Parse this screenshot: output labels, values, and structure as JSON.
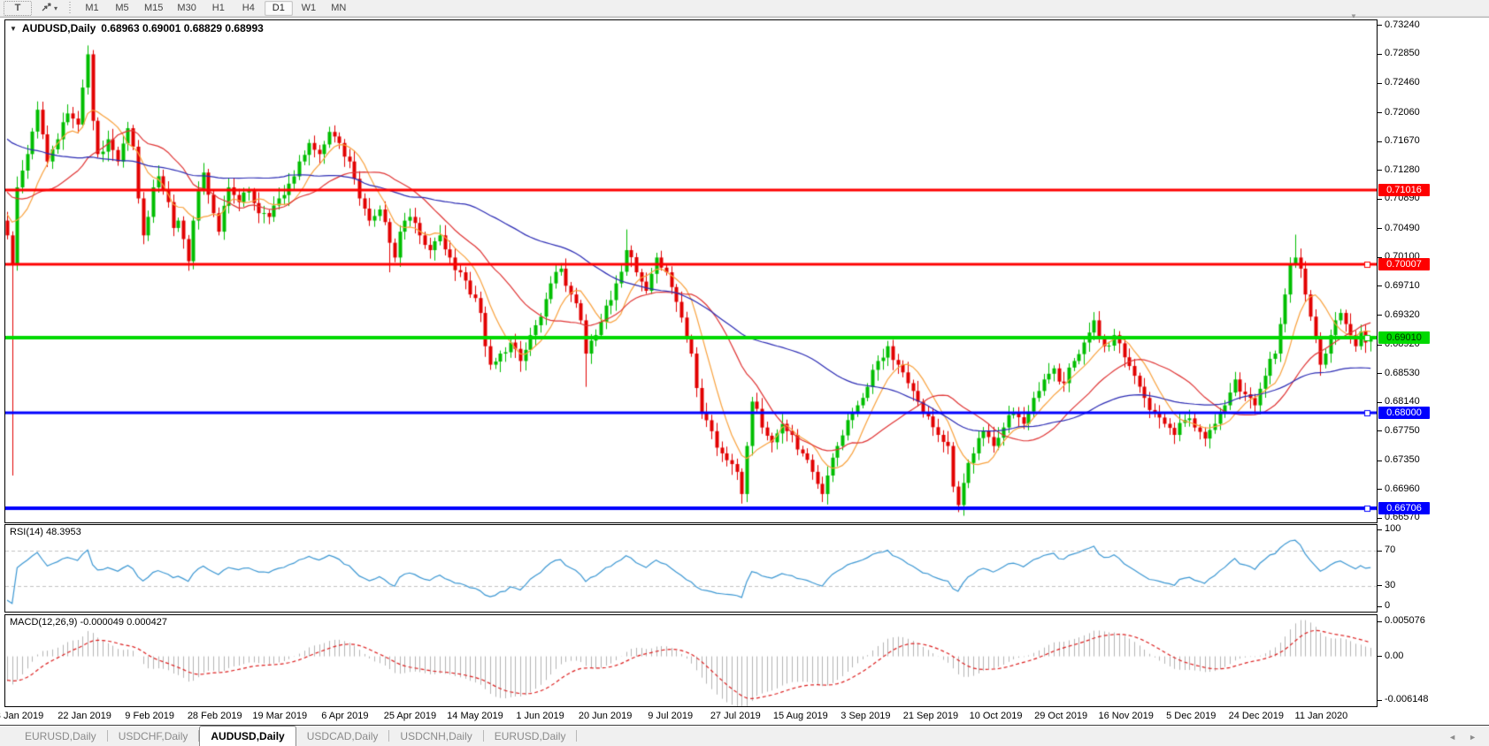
{
  "window": {
    "symbol": "AUDUSD,Daily",
    "ohlc": "0.68963 0.69001 0.68829 0.68993",
    "dropdown_icon": "down-triangle",
    "scroll_nub_icon": "down-triangle"
  },
  "toolbar": {
    "text_tool_label": "T",
    "arrows_tool_icon": "cursor-arrows",
    "timeframes": [
      "M1",
      "M5",
      "M15",
      "M30",
      "H1",
      "H4",
      "D1",
      "W1",
      "MN"
    ],
    "active_timeframe": "D1"
  },
  "panels": {
    "rsi": {
      "label": "RSI(14) 48.3953",
      "indicator": "RSI",
      "period": 14,
      "value": "48.3953",
      "axis_labels": [
        {
          "text": "100",
          "value": 100
        },
        {
          "text": "70",
          "value": 70
        },
        {
          "text": "30",
          "value": 30
        },
        {
          "text": "0",
          "value": 0
        }
      ],
      "guides": [
        70,
        30
      ]
    },
    "macd": {
      "label": "MACD(12,26,9) -0.000049 0.000427",
      "indicator": "MACD",
      "fast": 12,
      "slow": 26,
      "signal": 9,
      "main_value": "-0.000049",
      "signal_value": "0.000427",
      "axis_labels": [
        {
          "text": "0.005076",
          "value": 0.005076
        },
        {
          "text": "0.00",
          "value": 0
        },
        {
          "text": "-0.006148",
          "value": -0.006148
        }
      ]
    }
  },
  "tabs": {
    "items": [
      "EURUSD,Daily",
      "USDCHF,Daily",
      "AUDUSD,Daily",
      "USDCAD,Daily",
      "USDCNH,Daily",
      "EURUSD,Daily"
    ],
    "active_index": 2,
    "scroll_left_icon": "◄",
    "scroll_right_icon": "►"
  },
  "chart_data": {
    "type": "candlestick",
    "title": "AUDUSD Daily",
    "seed": 11,
    "bars": 272,
    "first_open": 0.706,
    "ylim": [
      0.66516,
      0.7331
    ],
    "price_ticks": [
      0.7324,
      0.7285,
      0.7246,
      0.7206,
      0.7167,
      0.7128,
      0.7089,
      0.7049,
      0.701,
      0.6971,
      0.6932,
      0.6892,
      0.6853,
      0.6814,
      0.6775,
      0.6735,
      0.6696,
      0.6657
    ],
    "x_labels": [
      "3 Jan 2019",
      "22 Jan 2019",
      "9 Feb 2019",
      "28 Feb 2019",
      "19 Mar 2019",
      "6 Apr 2019",
      "25 Apr 2019",
      "14 May 2019",
      "1 Jun 2019",
      "20 Jun 2019",
      "9 Jul 2019",
      "27 Jul 2019",
      "15 Aug 2019",
      "3 Sep 2019",
      "21 Sep 2019",
      "10 Oct 2019",
      "29 Oct 2019",
      "16 Nov 2019",
      "5 Dec 2019",
      "24 Dec 2019",
      "11 Jan 2020"
    ],
    "close_waypoints": [
      [
        0,
        0.704
      ],
      [
        1,
        0.7
      ],
      [
        2,
        0.7105
      ],
      [
        4,
        0.715
      ],
      [
        6,
        0.721
      ],
      [
        8,
        0.714
      ],
      [
        10,
        0.717
      ],
      [
        12,
        0.7205
      ],
      [
        14,
        0.719
      ],
      [
        15,
        0.724
      ],
      [
        16,
        0.7285
      ],
      [
        17,
        0.7195
      ],
      [
        18,
        0.715
      ],
      [
        20,
        0.717
      ],
      [
        22,
        0.714
      ],
      [
        24,
        0.7185
      ],
      [
        25,
        0.716
      ],
      [
        26,
        0.709
      ],
      [
        27,
        0.704
      ],
      [
        28,
        0.7065
      ],
      [
        29,
        0.7105
      ],
      [
        30,
        0.712
      ],
      [
        32,
        0.7085
      ],
      [
        33,
        0.705
      ],
      [
        34,
        0.706
      ],
      [
        35,
        0.7035
      ],
      [
        36,
        0.7005
      ],
      [
        37,
        0.706
      ],
      [
        38,
        0.71
      ],
      [
        39,
        0.7125
      ],
      [
        40,
        0.7095
      ],
      [
        41,
        0.707
      ],
      [
        42,
        0.7045
      ],
      [
        43,
        0.708
      ],
      [
        44,
        0.7105
      ],
      [
        46,
        0.7085
      ],
      [
        48,
        0.71
      ],
      [
        50,
        0.707
      ],
      [
        52,
        0.7065
      ],
      [
        54,
        0.709
      ],
      [
        56,
        0.711
      ],
      [
        58,
        0.714
      ],
      [
        60,
        0.7165
      ],
      [
        62,
        0.715
      ],
      [
        64,
        0.718
      ],
      [
        66,
        0.7165
      ],
      [
        68,
        0.714
      ],
      [
        70,
        0.709
      ],
      [
        72,
        0.706
      ],
      [
        74,
        0.7075
      ],
      [
        76,
        0.703
      ],
      [
        77,
        0.701
      ],
      [
        78,
        0.7045
      ],
      [
        80,
        0.7065
      ],
      [
        82,
        0.704
      ],
      [
        84,
        0.702
      ],
      [
        86,
        0.704
      ],
      [
        88,
        0.701
      ],
      [
        90,
        0.699
      ],
      [
        92,
        0.696
      ],
      [
        94,
        0.6935
      ],
      [
        95,
        0.689
      ],
      [
        96,
        0.6865
      ],
      [
        98,
        0.688
      ],
      [
        100,
        0.6895
      ],
      [
        102,
        0.687
      ],
      [
        104,
        0.6905
      ],
      [
        106,
        0.693
      ],
      [
        108,
        0.6975
      ],
      [
        110,
        0.6995
      ],
      [
        112,
        0.696
      ],
      [
        114,
        0.6925
      ],
      [
        115,
        0.688
      ],
      [
        117,
        0.6905
      ],
      [
        119,
        0.6945
      ],
      [
        121,
        0.6975
      ],
      [
        123,
        0.702
      ],
      [
        125,
        0.699
      ],
      [
        127,
        0.6965
      ],
      [
        129,
        0.701
      ],
      [
        131,
        0.699
      ],
      [
        133,
        0.695
      ],
      [
        135,
        0.69
      ],
      [
        136,
        0.688
      ],
      [
        138,
        0.68
      ],
      [
        140,
        0.6775
      ],
      [
        142,
        0.6745
      ],
      [
        145,
        0.672
      ],
      [
        146,
        0.669
      ],
      [
        147,
        0.6755
      ],
      [
        148,
        0.6815
      ],
      [
        150,
        0.678
      ],
      [
        152,
        0.676
      ],
      [
        154,
        0.6785
      ],
      [
        156,
        0.677
      ],
      [
        158,
        0.6745
      ],
      [
        160,
        0.672
      ],
      [
        162,
        0.669
      ],
      [
        163,
        0.6715
      ],
      [
        165,
        0.6755
      ],
      [
        167,
        0.679
      ],
      [
        169,
        0.681
      ],
      [
        171,
        0.6835
      ],
      [
        173,
        0.687
      ],
      [
        175,
        0.689
      ],
      [
        177,
        0.6865
      ],
      [
        179,
        0.684
      ],
      [
        181,
        0.6815
      ],
      [
        183,
        0.6795
      ],
      [
        185,
        0.677
      ],
      [
        187,
        0.6755
      ],
      [
        188,
        0.67
      ],
      [
        189,
        0.6675
      ],
      [
        190,
        0.6705
      ],
      [
        192,
        0.6745
      ],
      [
        194,
        0.6775
      ],
      [
        196,
        0.6755
      ],
      [
        198,
        0.678
      ],
      [
        200,
        0.68
      ],
      [
        202,
        0.6785
      ],
      [
        204,
        0.682
      ],
      [
        206,
        0.6845
      ],
      [
        208,
        0.686
      ],
      [
        210,
        0.684
      ],
      [
        212,
        0.687
      ],
      [
        214,
        0.6895
      ],
      [
        216,
        0.6925
      ],
      [
        218,
        0.689
      ],
      [
        220,
        0.6905
      ],
      [
        222,
        0.6875
      ],
      [
        224,
        0.685
      ],
      [
        226,
        0.682
      ],
      [
        228,
        0.68
      ],
      [
        230,
        0.6785
      ],
      [
        232,
        0.677
      ],
      [
        234,
        0.679
      ],
      [
        236,
        0.678
      ],
      [
        238,
        0.6765
      ],
      [
        240,
        0.6785
      ],
      [
        242,
        0.681
      ],
      [
        244,
        0.6845
      ],
      [
        246,
        0.6825
      ],
      [
        248,
        0.681
      ],
      [
        250,
        0.685
      ],
      [
        252,
        0.688
      ],
      [
        253,
        0.692
      ],
      [
        254,
        0.696
      ],
      [
        255,
        0.7
      ],
      [
        256,
        0.701
      ],
      [
        257,
        0.6995
      ],
      [
        258,
        0.696
      ],
      [
        259,
        0.693
      ],
      [
        260,
        0.69
      ],
      [
        261,
        0.6865
      ],
      [
        262,
        0.688
      ],
      [
        263,
        0.6905
      ],
      [
        264,
        0.6925
      ],
      [
        265,
        0.6935
      ],
      [
        266,
        0.692
      ],
      [
        267,
        0.6905
      ],
      [
        268,
        0.689
      ],
      [
        269,
        0.691
      ],
      [
        270,
        0.6895
      ],
      [
        271,
        0.68993
      ]
    ],
    "wick_overrides": {
      "1": {
        "low": 0.6715
      },
      "16": {
        "high": 0.7297
      },
      "76": {
        "low": 0.699
      },
      "96": {
        "low": 0.6858
      },
      "115": {
        "low": 0.6835
      },
      "123": {
        "high": 0.7048
      },
      "146": {
        "low": 0.6677
      },
      "163": {
        "low": 0.6688
      },
      "189": {
        "low": 0.667
      },
      "256": {
        "high": 0.7041
      },
      "261": {
        "low": 0.685
      }
    },
    "last_candle": {
      "open": 0.68963,
      "high": 0.69001,
      "low": 0.68829,
      "close": 0.68993
    },
    "pre_history": {
      "bars": 60,
      "start": 0.731,
      "end": 0.706
    },
    "levels": [
      {
        "price": 0.71016,
        "label": "0.71016",
        "color": "#fe0000",
        "text_color": "#ffffff",
        "width": 3,
        "handle": false
      },
      {
        "price": 0.70007,
        "label": "0.70007",
        "color": "#fe0000",
        "text_color": "#ffffff",
        "width": 3,
        "handle": true
      },
      {
        "price": 0.6901,
        "label": "0.69010",
        "color": "#00d900",
        "text_color": "#003300",
        "width": 4,
        "handle": true
      },
      {
        "price": 0.68,
        "label": "0.68000",
        "color": "#0000fe",
        "text_color": "#ffffff",
        "width": 3,
        "handle": true
      },
      {
        "price": 0.66706,
        "label": "0.66706",
        "color": "#0000fe",
        "text_color": "#ffffff",
        "width": 4,
        "handle": true
      }
    ],
    "moving_averages": [
      {
        "period": 8,
        "color": "#f9a13c"
      },
      {
        "period": 21,
        "color": "#e03434"
      },
      {
        "period": 55,
        "color": "#2b2bb4"
      }
    ],
    "colors": {
      "candle_up": "#00be00",
      "candle_down": "#e20000",
      "rsi_line": "#3b97d3",
      "rsi_guide": "#c2c2c2",
      "macd_hist": "#b4b4b4",
      "macd_signal": "#dd2020"
    },
    "rsi_ylim": [
      0,
      100
    ],
    "macd_ylim": [
      -0.006148,
      0.005076
    ],
    "grid": false,
    "legend_position": "none"
  }
}
